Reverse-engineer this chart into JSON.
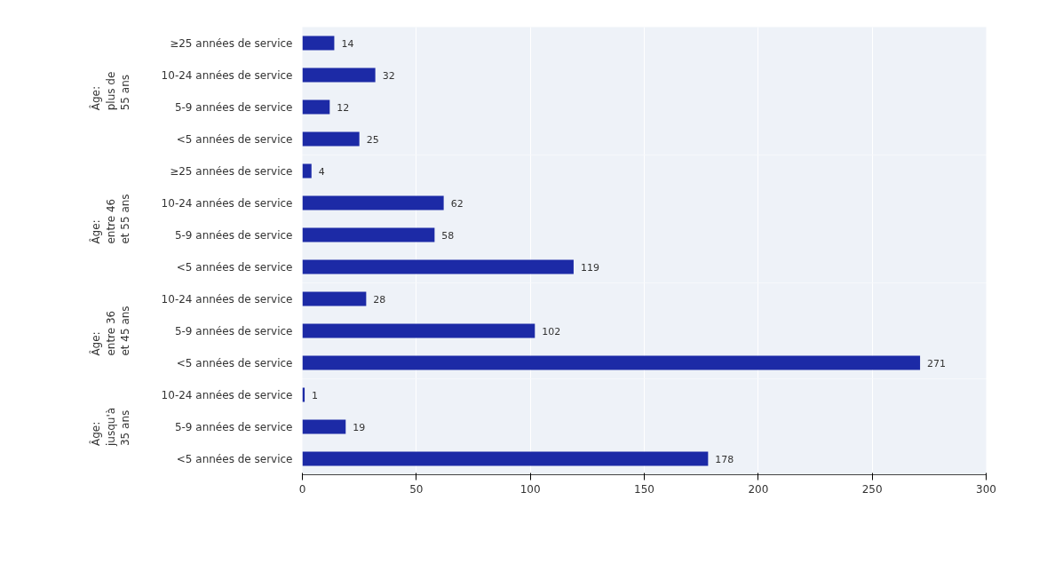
{
  "chart_data": [
    {
      "type": "bar",
      "orientation": "horizontal",
      "title": "Âge:\nplus de\n55 ans",
      "categories": [
        "≥25 années de service",
        "10-24 années de service",
        "5-9 années de service",
        "<5 années de service"
      ],
      "values": [
        14,
        32,
        12,
        25
      ],
      "color": "#1c2aa6",
      "data_labels": true,
      "xlim": [
        0,
        300
      ],
      "xticks": [
        0,
        50,
        100,
        150,
        200,
        250,
        300
      ],
      "grid": "x",
      "tick_labels": "y"
    },
    {
      "type": "bar",
      "orientation": "horizontal",
      "title": "Âge:\nentre 46\net 55 ans",
      "categories": [
        "≥25 années de service",
        "10-24 années de service",
        "5-9 années de service",
        "<5 années de service"
      ],
      "values": [
        4,
        62,
        58,
        119
      ],
      "color": "#1c2aa6",
      "data_labels": true,
      "xlim": [
        0,
        300
      ],
      "xticks": [
        0,
        50,
        100,
        150,
        200,
        250,
        300
      ],
      "grid": "x",
      "tick_labels": "y"
    },
    {
      "type": "bar",
      "orientation": "horizontal",
      "title": "Âge:\nentre 36\net 45 ans",
      "categories": [
        "10-24 années de service",
        "5-9 années de service",
        "<5 années de service"
      ],
      "values": [
        28,
        102,
        271
      ],
      "color": "#1c2aa6",
      "data_labels": true,
      "xlim": [
        0,
        300
      ],
      "xticks": [
        0,
        50,
        100,
        150,
        200,
        250,
        300
      ],
      "grid": "x",
      "tick_labels": "y"
    },
    {
      "type": "bar",
      "orientation": "horizontal",
      "title": "Âge:\njusqu'à\n35 ans",
      "categories": [
        "10-24 années de service",
        "5-9 années de service",
        "<5 années de service"
      ],
      "values": [
        1,
        19,
        178
      ],
      "color": "#1c2aa6",
      "data_labels": true,
      "xlim": [
        0,
        300
      ],
      "xticks": [
        0,
        50,
        100,
        150,
        200,
        250,
        300
      ],
      "grid": "x"
    }
  ]
}
